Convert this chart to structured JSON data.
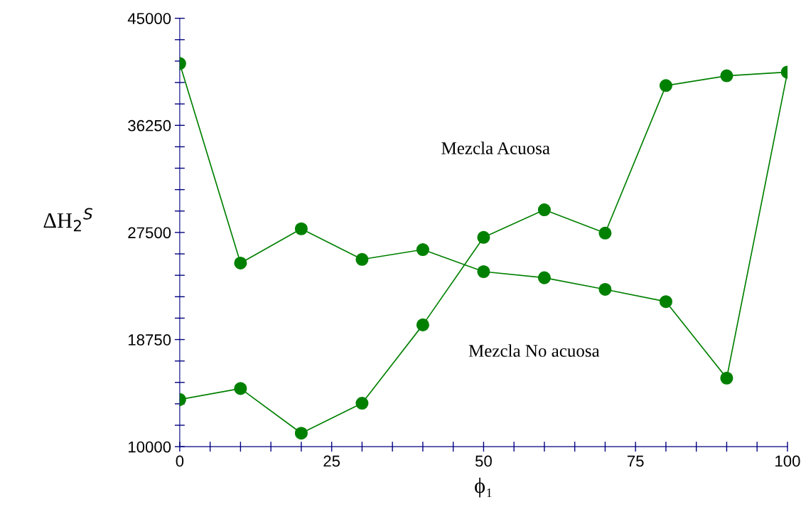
{
  "chart_data": {
    "type": "line",
    "xlabel": "ϕ₁",
    "ylabel": "ΔH$_{2}$$^{S}$",
    "x": [
      0,
      10,
      20,
      30,
      40,
      50,
      60,
      70,
      80,
      90,
      100
    ],
    "series": [
      {
        "color": "#008000",
        "values": [
          41300,
          25000,
          27800,
          25300,
          26100,
          24300,
          23800,
          22850,
          21850,
          15600,
          40600
        ]
      },
      {
        "color": "#008000",
        "values": [
          13850,
          14750,
          11100,
          13550,
          19950,
          27100,
          29350,
          27450,
          39500,
          40300,
          40600
        ]
      }
    ],
    "xlim": [
      0,
      100
    ],
    "ylim": [
      10000,
      45000
    ],
    "xticks": [
      0,
      {
        "value": 5,
        "label": null
      },
      {
        "value": 10,
        "label": null
      },
      {
        "value": 15,
        "label": null
      },
      {
        "value": 20,
        "label": null
      },
      25,
      {
        "value": 30,
        "label": null
      },
      {
        "value": 35,
        "label": null
      },
      {
        "value": 40,
        "label": null
      },
      {
        "value": 45,
        "label": null
      },
      50,
      {
        "value": 55,
        "label": null
      },
      {
        "value": 60,
        "label": null
      },
      {
        "value": 65,
        "label": null
      },
      {
        "value": 70,
        "label": null
      },
      75,
      {
        "value": 80,
        "label": null
      },
      {
        "value": 85,
        "label": null
      },
      {
        "value": 90,
        "label": null
      },
      {
        "value": 95,
        "label": null
      },
      100
    ],
    "yticks": [
      10000,
      {
        "value": 11750,
        "label": null
      },
      {
        "value": 13500,
        "label": null
      },
      {
        "value": 15250,
        "label": null
      },
      {
        "value": 17000,
        "label": null
      },
      18750,
      {
        "value": 20500,
        "label": null
      },
      {
        "value": 22250,
        "label": null
      },
      {
        "value": 24000,
        "label": null
      },
      {
        "value": 25750,
        "label": null
      },
      27500,
      {
        "value": 29250,
        "label": null
      },
      {
        "value": 31000,
        "label": null
      },
      {
        "value": 32750,
        "label": null
      },
      {
        "value": 34500,
        "label": null
      },
      36250,
      {
        "value": 38000,
        "label": null
      },
      {
        "value": 39750,
        "label": null
      },
      {
        "value": 41500,
        "label": null
      },
      {
        "value": 43250,
        "label": null
      },
      45000
    ],
    "annotations": [
      "Mezcla Acuosa",
      "Mezcla No acuosa"
    ],
    "marker": "circle",
    "grid": false,
    "legend": false
  }
}
